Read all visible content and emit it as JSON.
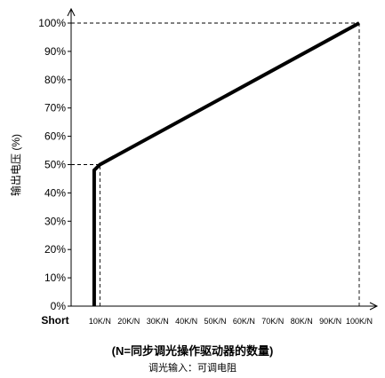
{
  "chart_data": {
    "type": "line",
    "title": "",
    "ylabel": "输出电压 (%)",
    "xlabel": "(N=同步调光操作驱动器的数量)",
    "subtitle": "调光输入：可调电阻",
    "x_tick_labels": [
      "Short",
      "10K/N",
      "20K/N",
      "30K/N",
      "40K/N",
      "50K/N",
      "60K/N",
      "70K/N",
      "80K/N",
      "90K/N",
      "100K/N"
    ],
    "x_ticks": [
      0,
      10,
      20,
      30,
      40,
      50,
      60,
      70,
      80,
      90,
      100
    ],
    "y_tick_labels": [
      "0%",
      "10%",
      "20%",
      "30%",
      "40%",
      "50%",
      "60%",
      "70%",
      "80%",
      "90%",
      "100%"
    ],
    "y_ticks": [
      0,
      10,
      20,
      30,
      40,
      50,
      60,
      70,
      80,
      90,
      100
    ],
    "xlim": [
      0,
      100
    ],
    "ylim": [
      0,
      100
    ],
    "grid": false,
    "series": [
      {
        "x": [
          8,
          8,
          10,
          100
        ],
        "y": [
          0,
          48,
          50,
          100
        ]
      }
    ],
    "reference_lines": [
      {
        "x": [
          0,
          100
        ],
        "y": [
          100,
          100
        ]
      },
      {
        "x": [
          100,
          100
        ],
        "y": [
          0,
          100
        ]
      },
      {
        "x": [
          0,
          10
        ],
        "y": [
          50,
          50
        ]
      },
      {
        "x": [
          10,
          10
        ],
        "y": [
          0,
          50
        ]
      }
    ]
  }
}
